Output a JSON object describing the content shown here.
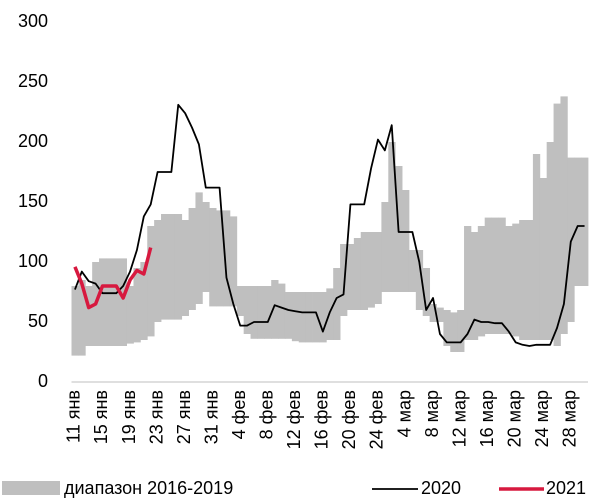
{
  "chart_data": {
    "type": "range_line",
    "categories": [
      "11 янв",
      null,
      null,
      null,
      "15 янв",
      null,
      null,
      null,
      "19 янв",
      null,
      null,
      null,
      "23 янв",
      null,
      null,
      null,
      "27 янв",
      null,
      null,
      null,
      "31 янв",
      null,
      null,
      null,
      "4 фев",
      null,
      null,
      null,
      "8 фев",
      null,
      null,
      null,
      "12 фев",
      null,
      null,
      null,
      "16 фев",
      null,
      null,
      null,
      "20 фев",
      null,
      null,
      null,
      "24 фев",
      null,
      null,
      null,
      "4 мар",
      null,
      null,
      null,
      "8 мар",
      null,
      null,
      null,
      "12 мар",
      null,
      null,
      null,
      "16 мар",
      null,
      null,
      null,
      "20 мар",
      null,
      null,
      null,
      "24 мар",
      null,
      null,
      null,
      "28 мар",
      null,
      null
    ],
    "band": {
      "name": "диапазон 2016-2019",
      "color": "#bfbfbf",
      "low": [
        22,
        22,
        30,
        30,
        30,
        30,
        30,
        30,
        32,
        33,
        35,
        38,
        50,
        52,
        52,
        52,
        55,
        60,
        65,
        75,
        63,
        63,
        63,
        63,
        55,
        40,
        36,
        36,
        36,
        36,
        36,
        36,
        34,
        33,
        33,
        33,
        33,
        35,
        35,
        55,
        60,
        60,
        60,
        62,
        65,
        75,
        75,
        75,
        75,
        75,
        60,
        55,
        50,
        50,
        30,
        25,
        25,
        35,
        35,
        38,
        40,
        40,
        40,
        40,
        38,
        35,
        35,
        35,
        35,
        35,
        30,
        40,
        50,
        80,
        80
      ],
      "high": [
        80,
        85,
        80,
        100,
        103,
        103,
        103,
        103,
        80,
        95,
        100,
        130,
        135,
        140,
        140,
        140,
        135,
        145,
        158,
        150,
        145,
        143,
        143,
        138,
        80,
        80,
        80,
        80,
        80,
        85,
        82,
        75,
        75,
        75,
        75,
        75,
        75,
        78,
        95,
        115,
        115,
        120,
        125,
        125,
        125,
        150,
        200,
        180,
        160,
        110,
        110,
        95,
        65,
        62,
        60,
        58,
        60,
        130,
        125,
        130,
        137,
        137,
        137,
        130,
        132,
        135,
        135,
        190,
        170,
        200,
        232,
        238,
        187,
        187,
        187
      ]
    },
    "series": [
      {
        "name": "2020",
        "color": "#000000",
        "values": [
          77,
          92,
          84,
          82,
          74,
          74,
          74,
          80,
          92,
          110,
          138,
          148,
          175,
          175,
          175,
          231,
          224,
          212,
          198,
          162,
          162,
          162,
          87,
          65,
          47,
          47,
          50,
          50,
          50,
          64,
          62,
          60,
          59,
          58,
          58,
          58,
          42,
          58,
          70,
          73,
          148,
          148,
          148,
          178,
          202,
          193,
          214,
          125,
          125,
          125,
          100,
          60,
          70,
          40,
          33,
          33,
          33,
          40,
          52,
          50,
          50,
          49,
          49,
          42,
          33,
          31,
          30,
          31,
          31,
          31,
          45,
          65,
          117,
          130,
          130
        ]
      },
      {
        "name": "2021",
        "color": "#d7193f",
        "values": [
          96,
          82,
          62,
          65,
          80,
          80,
          80,
          70,
          85,
          93,
          90,
          112,
          null,
          null,
          null,
          null,
          null,
          null,
          null,
          null,
          null,
          null,
          null,
          null,
          null,
          null,
          null,
          null,
          null,
          null,
          null,
          null,
          null,
          null,
          null,
          null,
          null,
          null,
          null,
          null,
          null,
          null,
          null,
          null,
          null,
          null,
          null,
          null,
          null,
          null,
          null,
          null,
          null,
          null,
          null,
          null,
          null,
          null,
          null,
          null,
          null,
          null,
          null,
          null,
          null,
          null,
          null,
          null,
          null,
          null,
          null,
          null,
          null,
          null,
          null
        ]
      }
    ],
    "ylim": [
      0,
      300
    ],
    "yticks": [
      0,
      50,
      100,
      150,
      200,
      250,
      300
    ],
    "grid": false
  }
}
